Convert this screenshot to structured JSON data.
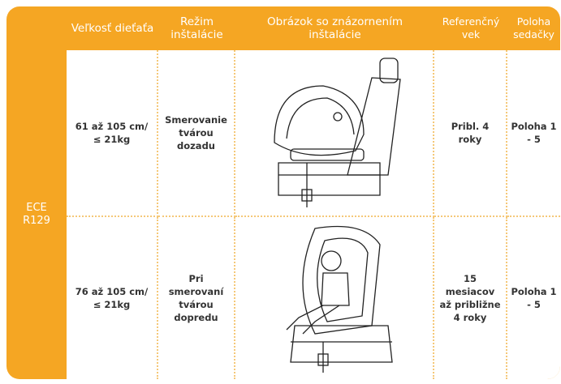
{
  "table": {
    "header": [
      "Veľkosť dieťaťa",
      "Režim inštalácie",
      "Obrázok so znázornením inštalácie",
      "Referenčný vek",
      "Poloha sedačky"
    ],
    "group_label": "ECE R129",
    "rows": [
      [
        "61 až 105 cm/ ≤ 21kg",
        "Smerovanie tvárou dozadu",
        "Pribl. 4 roky",
        "Poloha 1 - 5"
      ],
      [
        "76 až 105 cm/ ≤ 21kg",
        "Pri smerovaní tvárou dopredu",
        "15 mesiacov až približne 4 roky",
        "Poloha 1 - 5"
      ]
    ]
  }
}
